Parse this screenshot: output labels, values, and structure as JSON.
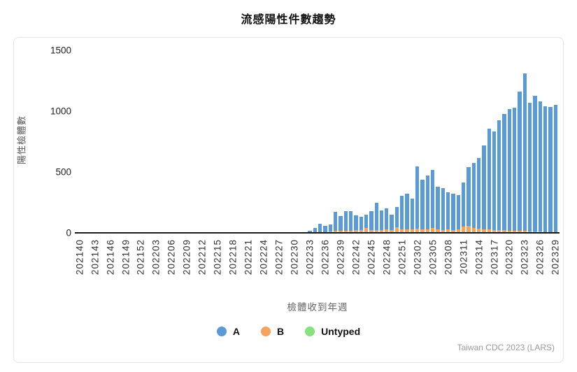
{
  "title": "流感陽性件數趨勢",
  "y_axis": {
    "label": "陽性檢體數",
    "ticks": [
      "1500",
      "1000",
      "500",
      "0"
    ]
  },
  "x_axis": {
    "label": "檢體收到年週"
  },
  "legend": [
    {
      "label": "A",
      "color": "#5b9bd5"
    },
    {
      "label": "B",
      "color": "#f7a35c"
    },
    {
      "label": "Untyped",
      "color": "#86e17e"
    }
  ],
  "attribution": "Taiwan CDC 2023 (LARS)",
  "chart_data": {
    "type": "bar",
    "stacked": true,
    "title": "流感陽性件數趨勢",
    "xlabel": "檢體收到年週",
    "ylabel": "陽性檢體數",
    "ylim": [
      0,
      1500
    ],
    "grid": false,
    "legend_position": "bottom",
    "tick_interval": 3,
    "tick_labels": [
      "202140",
      "202143",
      "202146",
      "202149",
      "202152",
      "202203",
      "202206",
      "202209",
      "202212",
      "202215",
      "202218",
      "202221",
      "202224",
      "202227",
      "202230",
      "202233",
      "202236",
      "202239",
      "202242",
      "202245",
      "202248",
      "202251",
      "202302",
      "202305",
      "202308",
      "202311",
      "202314",
      "202317",
      "202320",
      "202323",
      "202326",
      "202329"
    ],
    "categories": [
      "202140",
      "202141",
      "202142",
      "202143",
      "202144",
      "202145",
      "202146",
      "202147",
      "202148",
      "202149",
      "202150",
      "202151",
      "202152",
      "202201",
      "202202",
      "202203",
      "202204",
      "202205",
      "202206",
      "202207",
      "202208",
      "202209",
      "202210",
      "202211",
      "202212",
      "202213",
      "202214",
      "202215",
      "202216",
      "202217",
      "202218",
      "202219",
      "202220",
      "202221",
      "202222",
      "202223",
      "202224",
      "202225",
      "202226",
      "202227",
      "202228",
      "202229",
      "202230",
      "202231",
      "202232",
      "202233",
      "202234",
      "202235",
      "202236",
      "202237",
      "202238",
      "202239",
      "202240",
      "202241",
      "202242",
      "202243",
      "202244",
      "202245",
      "202246",
      "202247",
      "202248",
      "202249",
      "202250",
      "202251",
      "202252",
      "202301",
      "202302",
      "202303",
      "202304",
      "202305",
      "202306",
      "202307",
      "202308",
      "202309",
      "202310",
      "202311",
      "202312",
      "202313",
      "202314",
      "202315",
      "202316",
      "202317",
      "202318",
      "202319",
      "202320",
      "202321",
      "202322",
      "202323",
      "202324",
      "202325",
      "202326",
      "202327",
      "202328",
      "202329"
    ],
    "stack_order": [
      "B",
      "A",
      "Untyped"
    ],
    "series": [
      {
        "name": "A",
        "color": "#5b9bd5",
        "values": [
          0,
          0,
          0,
          0,
          0,
          0,
          0,
          0,
          0,
          0,
          0,
          0,
          0,
          0,
          0,
          0,
          0,
          0,
          0,
          0,
          0,
          0,
          0,
          0,
          0,
          0,
          0,
          0,
          0,
          0,
          0,
          0,
          0,
          0,
          0,
          0,
          0,
          0,
          0,
          0,
          0,
          0,
          0,
          0,
          0,
          12,
          34,
          67,
          52,
          60,
          155,
          122,
          157,
          155,
          123,
          105,
          110,
          150,
          220,
          160,
          170,
          125,
          165,
          275,
          290,
          250,
          510,
          405,
          440,
          475,
          350,
          340,
          300,
          295,
          280,
          360,
          485,
          530,
          580,
          685,
          825,
          805,
          895,
          950,
          995,
          1005,
          1140,
          1290,
          1055,
          1110,
          1065,
          1027,
          1022,
          1037
        ]
      },
      {
        "name": "B",
        "color": "#f7a35c",
        "values": [
          0,
          0,
          0,
          0,
          0,
          0,
          0,
          0,
          0,
          0,
          0,
          0,
          0,
          0,
          0,
          0,
          0,
          0,
          0,
          0,
          0,
          0,
          0,
          0,
          0,
          6,
          0,
          0,
          0,
          0,
          0,
          0,
          0,
          0,
          0,
          0,
          0,
          0,
          0,
          0,
          0,
          0,
          0,
          0,
          0,
          3,
          6,
          8,
          8,
          10,
          15,
          18,
          18,
          20,
          22,
          25,
          40,
          25,
          25,
          25,
          30,
          25,
          45,
          30,
          30,
          30,
          35,
          30,
          30,
          40,
          30,
          25,
          30,
          25,
          30,
          50,
          55,
          40,
          35,
          30,
          30,
          25,
          25,
          25,
          20,
          20,
          15,
          15,
          10,
          10,
          10,
          8,
          8,
          8
        ]
      },
      {
        "name": "Untyped",
        "color": "#86e17e",
        "values": [
          0,
          0,
          0,
          0,
          0,
          0,
          0,
          0,
          0,
          0,
          0,
          0,
          0,
          0,
          0,
          0,
          0,
          0,
          0,
          0,
          0,
          0,
          0,
          0,
          0,
          0,
          0,
          0,
          0,
          0,
          0,
          0,
          0,
          0,
          0,
          0,
          0,
          0,
          0,
          0,
          0,
          0,
          0,
          0,
          0,
          0,
          0,
          0,
          0,
          0,
          0,
          0,
          0,
          0,
          0,
          0,
          0,
          0,
          0,
          0,
          0,
          0,
          0,
          0,
          0,
          0,
          0,
          0,
          0,
          0,
          0,
          0,
          0,
          0,
          0,
          0,
          0,
          0,
          0,
          0,
          0,
          0,
          0,
          0,
          0,
          0,
          0,
          0,
          0,
          0,
          0,
          0,
          0,
          0
        ]
      }
    ]
  }
}
